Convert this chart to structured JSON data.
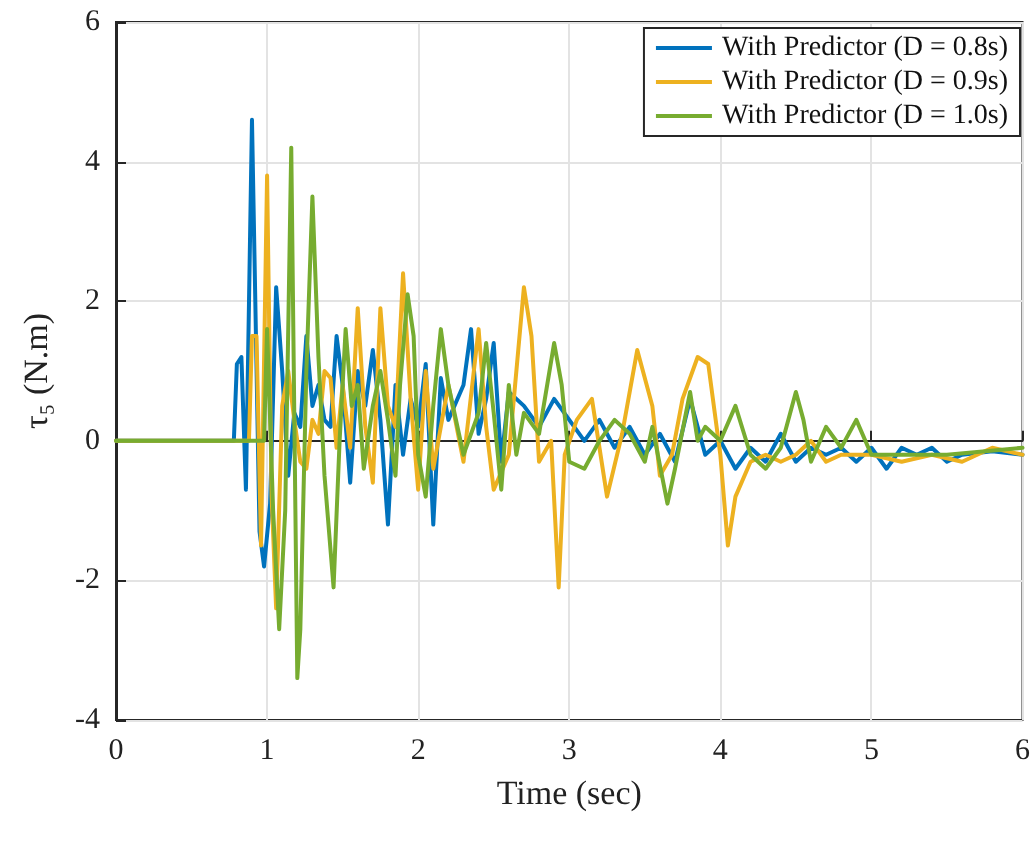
{
  "chart_data": {
    "type": "line",
    "xlabel": "Time (sec)",
    "ylabel": "τ₅ (N.m)",
    "xlim": [
      0,
      6
    ],
    "xticks": [
      0,
      1,
      2,
      3,
      4,
      5,
      6
    ],
    "ylim": [
      -4,
      6
    ],
    "yticks": [
      -4,
      -2,
      0,
      2,
      4,
      6
    ],
    "grid": true,
    "legend": "top right",
    "marker": "none",
    "line_style": "solid",
    "series": [
      {
        "name": "With Predictor (D = 0.8s)",
        "color": "#0072bd",
        "x": [
          0,
          0.78,
          0.8,
          0.83,
          0.86,
          0.9,
          0.95,
          0.98,
          1.02,
          1.06,
          1.1,
          1.14,
          1.18,
          1.22,
          1.26,
          1.3,
          1.34,
          1.38,
          1.42,
          1.46,
          1.5,
          1.55,
          1.6,
          1.65,
          1.7,
          1.75,
          1.8,
          1.85,
          1.9,
          1.95,
          2.0,
          2.05,
          2.1,
          2.15,
          2.2,
          2.3,
          2.35,
          2.4,
          2.45,
          2.5,
          2.55,
          2.6,
          2.7,
          2.8,
          2.9,
          3.0,
          3.1,
          3.2,
          3.3,
          3.4,
          3.5,
          3.6,
          3.7,
          3.8,
          3.9,
          4.0,
          4.1,
          4.2,
          4.3,
          4.4,
          4.5,
          4.6,
          4.7,
          4.8,
          4.9,
          5.0,
          5.1,
          5.2,
          5.3,
          5.4,
          5.5,
          5.6,
          5.8,
          6.0
        ],
        "values": [
          0,
          0,
          1.1,
          1.2,
          -0.7,
          4.6,
          -1.3,
          -1.8,
          -0.9,
          2.2,
          1.0,
          -0.5,
          0.4,
          0.2,
          1.5,
          0.5,
          0.8,
          0.3,
          0.2,
          1.5,
          0.8,
          -0.6,
          1.0,
          0.5,
          1.3,
          0.3,
          -1.2,
          0.8,
          -0.2,
          0.6,
          0.2,
          1.1,
          -1.2,
          0.9,
          0.3,
          0.8,
          1.6,
          0.1,
          0.6,
          1.4,
          -0.3,
          0.7,
          0.5,
          0.2,
          0.6,
          0.3,
          0.0,
          0.3,
          -0.1,
          0.2,
          -0.2,
          0.1,
          -0.3,
          0.6,
          -0.2,
          0.0,
          -0.4,
          -0.1,
          -0.3,
          0.1,
          -0.3,
          -0.1,
          -0.2,
          -0.1,
          -0.3,
          -0.1,
          -0.4,
          -0.1,
          -0.2,
          -0.1,
          -0.3,
          -0.2,
          -0.15,
          -0.2
        ]
      },
      {
        "name": "With Predictor (D = 0.9s)",
        "color": "#edb120",
        "x": [
          0,
          0.88,
          0.9,
          0.93,
          0.96,
          1.0,
          1.03,
          1.06,
          1.1,
          1.14,
          1.18,
          1.22,
          1.26,
          1.3,
          1.34,
          1.38,
          1.42,
          1.46,
          1.5,
          1.55,
          1.6,
          1.65,
          1.7,
          1.75,
          1.8,
          1.85,
          1.9,
          1.95,
          2.0,
          2.05,
          2.1,
          2.2,
          2.3,
          2.4,
          2.45,
          2.5,
          2.6,
          2.7,
          2.75,
          2.8,
          2.88,
          2.93,
          2.97,
          3.05,
          3.15,
          3.25,
          3.35,
          3.45,
          3.55,
          3.6,
          3.68,
          3.75,
          3.85,
          3.92,
          4.0,
          4.05,
          4.1,
          4.2,
          4.3,
          4.4,
          4.5,
          4.6,
          4.7,
          4.8,
          5.0,
          5.2,
          5.4,
          5.6,
          5.8,
          6.0
        ],
        "values": [
          0,
          0,
          1.5,
          1.5,
          -1.5,
          3.8,
          -0.8,
          -2.4,
          0.5,
          1.0,
          0.3,
          -0.3,
          -0.4,
          0.3,
          0.1,
          1.0,
          0.9,
          -0.1,
          0.8,
          -0.1,
          1.9,
          0.2,
          -0.6,
          1.9,
          0.5,
          0.2,
          2.4,
          0.6,
          -0.7,
          1.0,
          -0.4,
          0.8,
          -0.3,
          1.6,
          0.2,
          -0.7,
          -0.2,
          2.2,
          1.5,
          -0.3,
          0.0,
          -2.1,
          -0.2,
          0.3,
          0.6,
          -0.8,
          0.1,
          1.3,
          0.5,
          -0.5,
          -0.2,
          0.6,
          1.2,
          1.1,
          -0.2,
          -1.5,
          -0.8,
          -0.3,
          -0.2,
          -0.3,
          -0.2,
          0.0,
          -0.3,
          -0.2,
          -0.2,
          -0.3,
          -0.2,
          -0.3,
          -0.1,
          -0.2
        ]
      },
      {
        "name": "With Predictor (D = 1.0s)",
        "color": "#77ac30",
        "x": [
          0,
          0.98,
          1.0,
          1.04,
          1.08,
          1.12,
          1.16,
          1.2,
          1.22,
          1.26,
          1.3,
          1.34,
          1.38,
          1.44,
          1.48,
          1.52,
          1.56,
          1.6,
          1.64,
          1.7,
          1.75,
          1.8,
          1.85,
          1.88,
          1.93,
          1.97,
          2.0,
          2.05,
          2.1,
          2.15,
          2.2,
          2.3,
          2.4,
          2.45,
          2.5,
          2.55,
          2.6,
          2.65,
          2.7,
          2.8,
          2.9,
          2.95,
          3.0,
          3.1,
          3.2,
          3.3,
          3.4,
          3.5,
          3.55,
          3.65,
          3.7,
          3.8,
          3.85,
          3.9,
          4.0,
          4.1,
          4.2,
          4.3,
          4.4,
          4.5,
          4.55,
          4.6,
          4.7,
          4.8,
          4.9,
          5.0,
          5.2,
          5.5,
          6.0
        ],
        "values": [
          0,
          0,
          1.6,
          -1.0,
          -2.7,
          -1.0,
          4.2,
          -3.4,
          -2.7,
          1.0,
          3.5,
          1.2,
          -0.5,
          -2.1,
          0.0,
          1.6,
          0.5,
          0.8,
          -0.4,
          0.5,
          1.0,
          0.3,
          -0.5,
          0.8,
          2.1,
          1.5,
          -0.2,
          -0.8,
          0.5,
          1.6,
          0.8,
          -0.2,
          0.4,
          1.4,
          0.4,
          -0.7,
          0.8,
          -0.2,
          0.4,
          0.1,
          1.4,
          0.8,
          -0.3,
          -0.4,
          0.0,
          0.3,
          0.1,
          -0.3,
          0.2,
          -0.9,
          -0.4,
          0.7,
          0.0,
          0.2,
          0.0,
          0.5,
          -0.2,
          -0.4,
          -0.1,
          0.7,
          0.3,
          -0.3,
          0.2,
          -0.1,
          0.3,
          -0.2,
          -0.2,
          -0.2,
          -0.1
        ]
      }
    ]
  }
}
